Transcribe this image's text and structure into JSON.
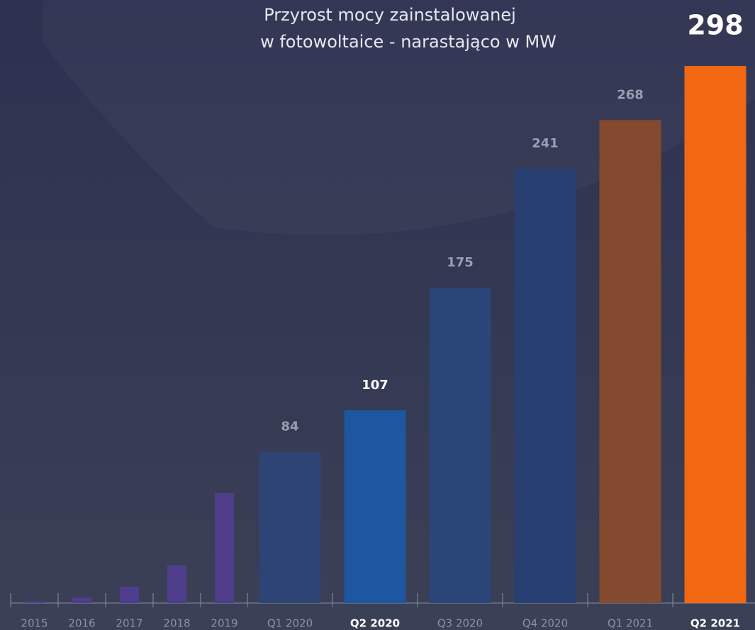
{
  "chart_data": {
    "type": "bar",
    "title": [
      "Przyrost mocy zainstalowanej",
      "w fotowoltaice - narastająco w MW"
    ],
    "categories": [
      "2015",
      "2016",
      "2017",
      "2018",
      "2019",
      "Q1 2020",
      "Q2 2020",
      "Q3 2020",
      "Q4 2020",
      "Q1 2021",
      "Q2 2021"
    ],
    "values": [
      1,
      3,
      9,
      21,
      61,
      84,
      107,
      175,
      241,
      268,
      298
    ],
    "value_labels": [
      null,
      null,
      null,
      null,
      null,
      "84",
      "107",
      "175",
      "241",
      "268",
      "298"
    ],
    "colors": [
      "#4e3e8c",
      "#4e3e8c",
      "#4e3e8c",
      "#4e3e8c",
      "#4e3e8c",
      "#2d4474",
      "#1e56a0",
      "#2a4577",
      "#273f72",
      "#844a30",
      "#f26812"
    ],
    "highlight": [
      6,
      10
    ],
    "ylim": [
      0,
      300
    ]
  }
}
